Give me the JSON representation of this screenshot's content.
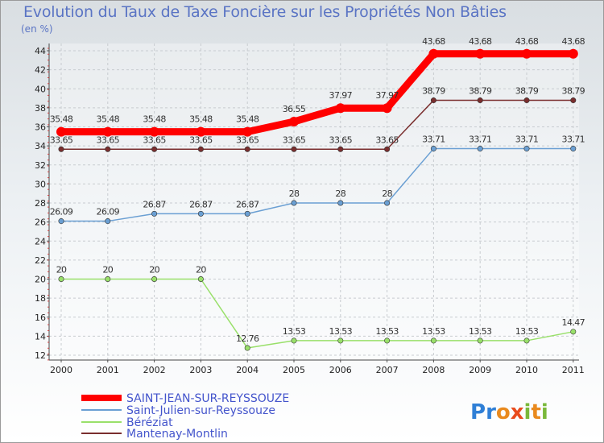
{
  "chart_data": {
    "type": "line",
    "title": "Evolution du Taux de Taxe Foncière sur les Propriétés Non Bâties",
    "ylabel": "(en %)",
    "xlabel": "",
    "categories": [
      "2000",
      "2001",
      "2002",
      "2003",
      "2004",
      "2005",
      "2006",
      "2007",
      "2008",
      "2009",
      "2010",
      "2011"
    ],
    "ylim": [
      12,
      44
    ],
    "yticks": [
      12,
      14,
      16,
      18,
      20,
      22,
      24,
      26,
      28,
      30,
      32,
      34,
      36,
      38,
      40,
      42,
      44
    ],
    "grid": true,
    "legend_position": "bottom-left",
    "series": [
      {
        "name": "SAINT-JEAN-SUR-REYSSOUZE",
        "color": "#ff0000",
        "values": [
          35.48,
          35.48,
          35.48,
          35.48,
          35.48,
          36.55,
          37.97,
          37.97,
          43.68,
          43.68,
          43.68,
          43.68
        ],
        "labels": [
          "35.48",
          "35.48",
          "35.48",
          "35.48",
          "35.48",
          "36.55",
          "37.97",
          "37.97",
          "43.68",
          "43.68",
          "43.68",
          "43.68"
        ]
      },
      {
        "name": "Saint-Julien-sur-Reyssouze",
        "color": "#6a9fd3",
        "values": [
          26.09,
          26.09,
          26.87,
          26.87,
          26.87,
          28,
          28,
          28,
          33.71,
          33.71,
          33.71,
          33.71
        ],
        "labels": [
          "26.09",
          "26.09",
          "26.87",
          "26.87",
          "26.87",
          "28",
          "28",
          "28",
          "33.71",
          "33.71",
          "33.71",
          "33.71"
        ]
      },
      {
        "name": "Béréziat",
        "color": "#99e06a",
        "values": [
          20,
          20,
          20,
          20,
          12.76,
          13.53,
          13.53,
          13.53,
          13.53,
          13.53,
          13.53,
          14.47
        ],
        "labels": [
          "20",
          "20",
          "20",
          "20",
          "12.76",
          "13.53",
          "13.53",
          "13.53",
          "13.53",
          "13.53",
          "13.53",
          "14.47"
        ]
      },
      {
        "name": "Mantenay-Montlin",
        "color": "#7a2e2e",
        "values": [
          33.65,
          33.65,
          33.65,
          33.65,
          33.65,
          33.65,
          33.65,
          33.65,
          38.79,
          38.79,
          38.79,
          38.79
        ],
        "labels": [
          "33.65",
          "33.65",
          "33.65",
          "33.65",
          "33.65",
          "33.65",
          "33.65",
          "33.65",
          "38.79",
          "38.79",
          "38.79",
          "38.79"
        ]
      }
    ]
  },
  "logo": {
    "text": "Proxiti"
  }
}
